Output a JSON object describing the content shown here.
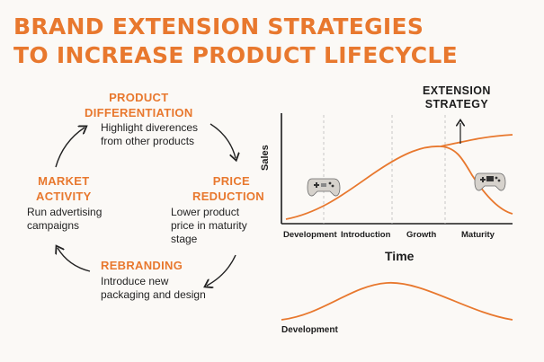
{
  "title": {
    "line1": "BRAND EXTENSION STRATEGIES",
    "line2": "TO INCREASE PRODUCT LIFECYCLE"
  },
  "cycle": {
    "product_differentiation": {
      "heading1": "PRODUCT",
      "heading2": "DIFFERENTIATION",
      "desc1": "Highlight diverences",
      "desc2": "from other products"
    },
    "price_reduction": {
      "heading1": "PRICE",
      "heading2": "REDUCTION",
      "desc1": "Lower product",
      "desc2": "price in maturity",
      "desc3": "stage"
    },
    "rebranding": {
      "heading": "REBRANDING",
      "desc1": "Introduce new",
      "desc2": "packaging and design"
    },
    "market_activity": {
      "heading1": "MARKET",
      "heading2": "ACTIVITY",
      "desc1": "Run advertising",
      "desc2": "campaigns"
    }
  },
  "lifecycle_chart": {
    "extension_label1": "EXTENSION",
    "extension_label2": "STRATEGY",
    "ylabel": "Sales",
    "xlabel": "Time",
    "stages": [
      "Development",
      "Introduction",
      "Growth",
      "Maturity"
    ]
  },
  "bottom_chart": {
    "stage": "Development"
  },
  "colors": {
    "accent": "#e8782e",
    "text": "#1c1c1c",
    "background": "#fbf9f6"
  },
  "icons": [
    "gamepad-icon",
    "gamepad-icon"
  ]
}
